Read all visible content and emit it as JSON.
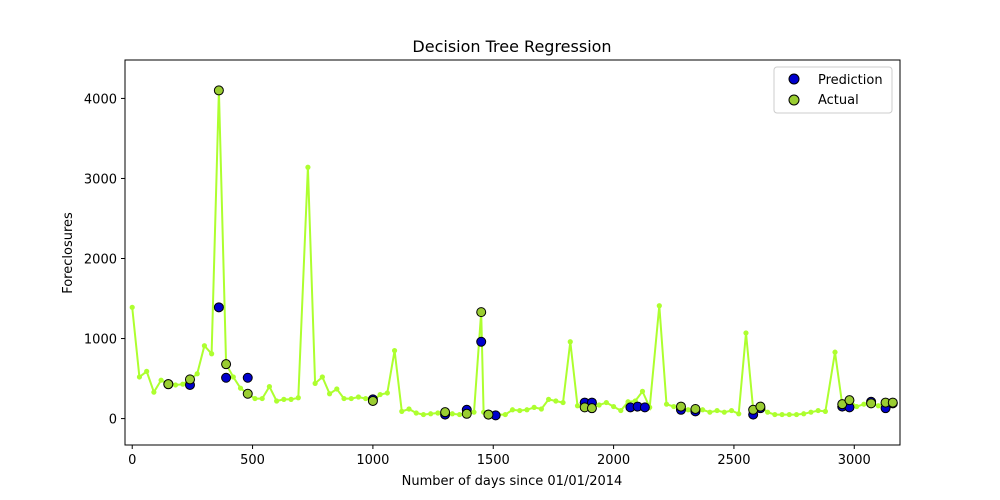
{
  "chart_data": {
    "type": "scatter",
    "title": "Decision Tree Regression",
    "xlabel": "Number of days since 01/01/2014",
    "ylabel": "Foreclosures",
    "xlim": [
      -30,
      3190
    ],
    "ylim": [
      -330,
      4480
    ],
    "xticks": [
      0,
      500,
      1000,
      1500,
      2000,
      2500,
      3000
    ],
    "yticks": [
      0,
      1000,
      2000,
      3000,
      4000
    ],
    "grid": false,
    "legend_placement": "top-right",
    "colors": {
      "actual_line": "#adff2f",
      "actual_marker": "#9acd32",
      "prediction_marker": "#0000cd"
    },
    "legend": [
      {
        "label": "Prediction",
        "color": "#0000cd"
      },
      {
        "label": "Actual",
        "color": "#9acd32"
      }
    ],
    "actual_series": {
      "name": "Actual",
      "x": [
        0,
        30,
        60,
        90,
        120,
        150,
        180,
        210,
        240,
        270,
        300,
        330,
        360,
        390,
        420,
        450,
        480,
        510,
        540,
        570,
        600,
        630,
        660,
        690,
        730,
        760,
        790,
        820,
        850,
        880,
        910,
        940,
        970,
        1000,
        1030,
        1060,
        1090,
        1120,
        1150,
        1180,
        1210,
        1240,
        1270,
        1300,
        1330,
        1360,
        1390,
        1420,
        1450,
        1460,
        1480,
        1500,
        1520,
        1550,
        1580,
        1610,
        1640,
        1670,
        1700,
        1730,
        1760,
        1790,
        1820,
        1850,
        1880,
        1910,
        1940,
        1970,
        2000,
        2030,
        2060,
        2090,
        2120,
        2150,
        2190,
        2220,
        2250,
        2280,
        2310,
        2340,
        2370,
        2400,
        2430,
        2460,
        2490,
        2520,
        2550,
        2580,
        2610,
        2640,
        2670,
        2700,
        2730,
        2760,
        2790,
        2820,
        2850,
        2880,
        2920,
        2950,
        2980,
        3010,
        3040,
        3070,
        3100,
        3130,
        3160
      ],
      "y": [
        1390,
        520,
        590,
        330,
        480,
        430,
        420,
        430,
        490,
        560,
        910,
        810,
        4100,
        680,
        520,
        380,
        310,
        250,
        250,
        400,
        220,
        240,
        240,
        260,
        3140,
        440,
        520,
        310,
        370,
        250,
        250,
        270,
        250,
        220,
        300,
        320,
        850,
        90,
        120,
        70,
        50,
        60,
        70,
        80,
        60,
        50,
        60,
        80,
        1330,
        80,
        50,
        60,
        50,
        50,
        110,
        100,
        110,
        140,
        120,
        240,
        220,
        200,
        960,
        160,
        140,
        130,
        170,
        200,
        150,
        100,
        210,
        220,
        340,
        140,
        1410,
        180,
        150,
        150,
        110,
        120,
        110,
        80,
        100,
        80,
        100,
        60,
        1070,
        110,
        150,
        80,
        50,
        50,
        50,
        50,
        60,
        80,
        100,
        90,
        830,
        180,
        230,
        150,
        180,
        190,
        160,
        200,
        200
      ]
    },
    "prediction_series": {
      "name": "Prediction",
      "x": [
        150,
        240,
        360,
        390,
        480,
        1000,
        1300,
        1390,
        1450,
        1480,
        1510,
        1880,
        1910,
        2070,
        2100,
        2130,
        2280,
        2340,
        2580,
        2610,
        2950,
        2980,
        3070,
        3130,
        3160
      ],
      "y": [
        430,
        420,
        1390,
        510,
        510,
        240,
        50,
        110,
        960,
        50,
        40,
        200,
        200,
        140,
        150,
        140,
        110,
        90,
        50,
        130,
        150,
        140,
        210,
        130,
        190
      ]
    },
    "actual_marked_x": [
      150,
      240,
      360,
      390,
      480,
      1000,
      1300,
      1390,
      1450,
      1480,
      1510,
      1880,
      1910,
      2070,
      2100,
      2130,
      2280,
      2340,
      2580,
      2610,
      2950,
      2980,
      3070,
      3130,
      3160
    ]
  }
}
